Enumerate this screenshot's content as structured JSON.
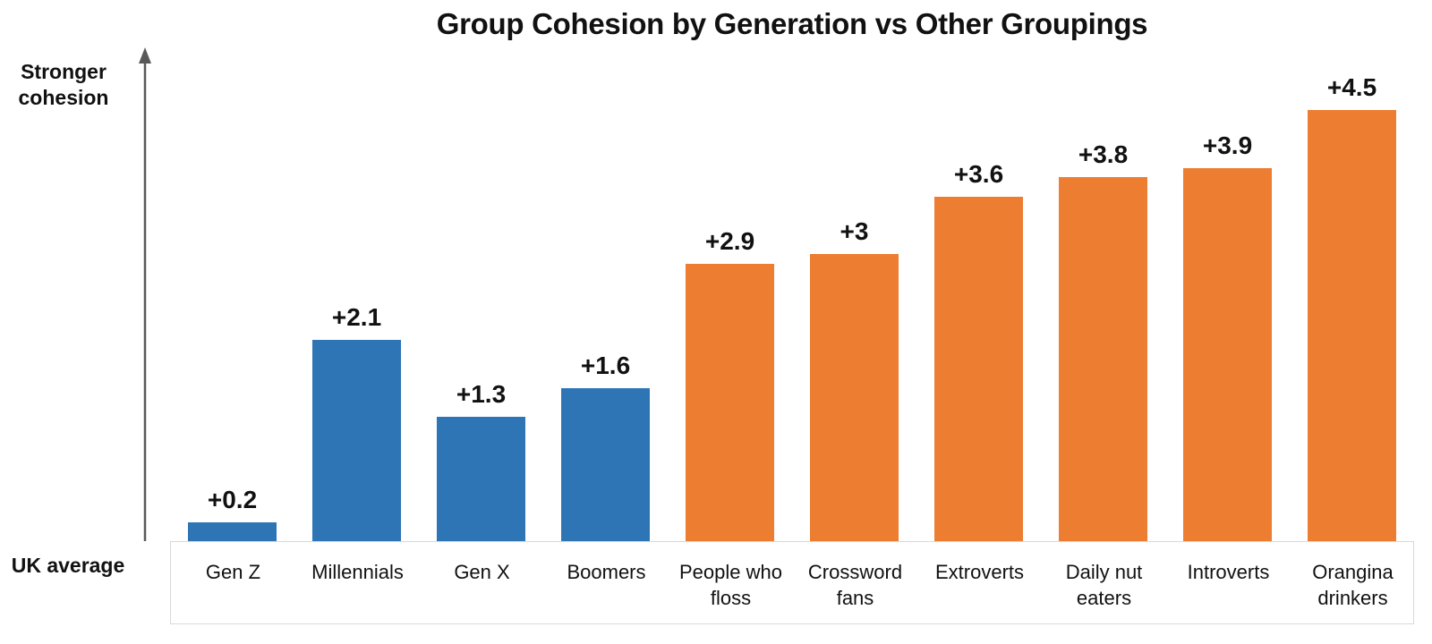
{
  "chart_data": {
    "type": "bar",
    "title": "Group Cohesion by Generation vs Other Groupings",
    "categories": [
      "Gen Z",
      "Millennials",
      "Gen X",
      "Boomers",
      "People who floss",
      "Crossword fans",
      "Extroverts",
      "Daily nut eaters",
      "Introverts",
      "Orangina drinkers"
    ],
    "values": [
      0.2,
      2.1,
      1.3,
      1.6,
      2.9,
      3,
      3.6,
      3.8,
      3.9,
      4.5
    ],
    "data_labels": [
      "+0.2",
      "+2.1",
      "+1.3",
      "+1.6",
      "+2.9",
      "+3",
      "+3.6",
      "+3.8",
      "+3.9",
      "+4.5"
    ],
    "bar_groups": [
      "generation",
      "generation",
      "generation",
      "generation",
      "other",
      "other",
      "other",
      "other",
      "other",
      "other"
    ],
    "colors": {
      "generation": "#2E75B6",
      "other": "#ED7D31",
      "axis_arrow": "#595959",
      "label_box_border": "#D9D9D9",
      "text": "#111111"
    },
    "y_axis_top_label": "Stronger cohesion",
    "y_axis_bottom_label": "UK average",
    "ylim": [
      0,
      4.7
    ],
    "xlabel": "",
    "ylabel": "Stronger cohesion",
    "grid": false,
    "legend": false
  }
}
